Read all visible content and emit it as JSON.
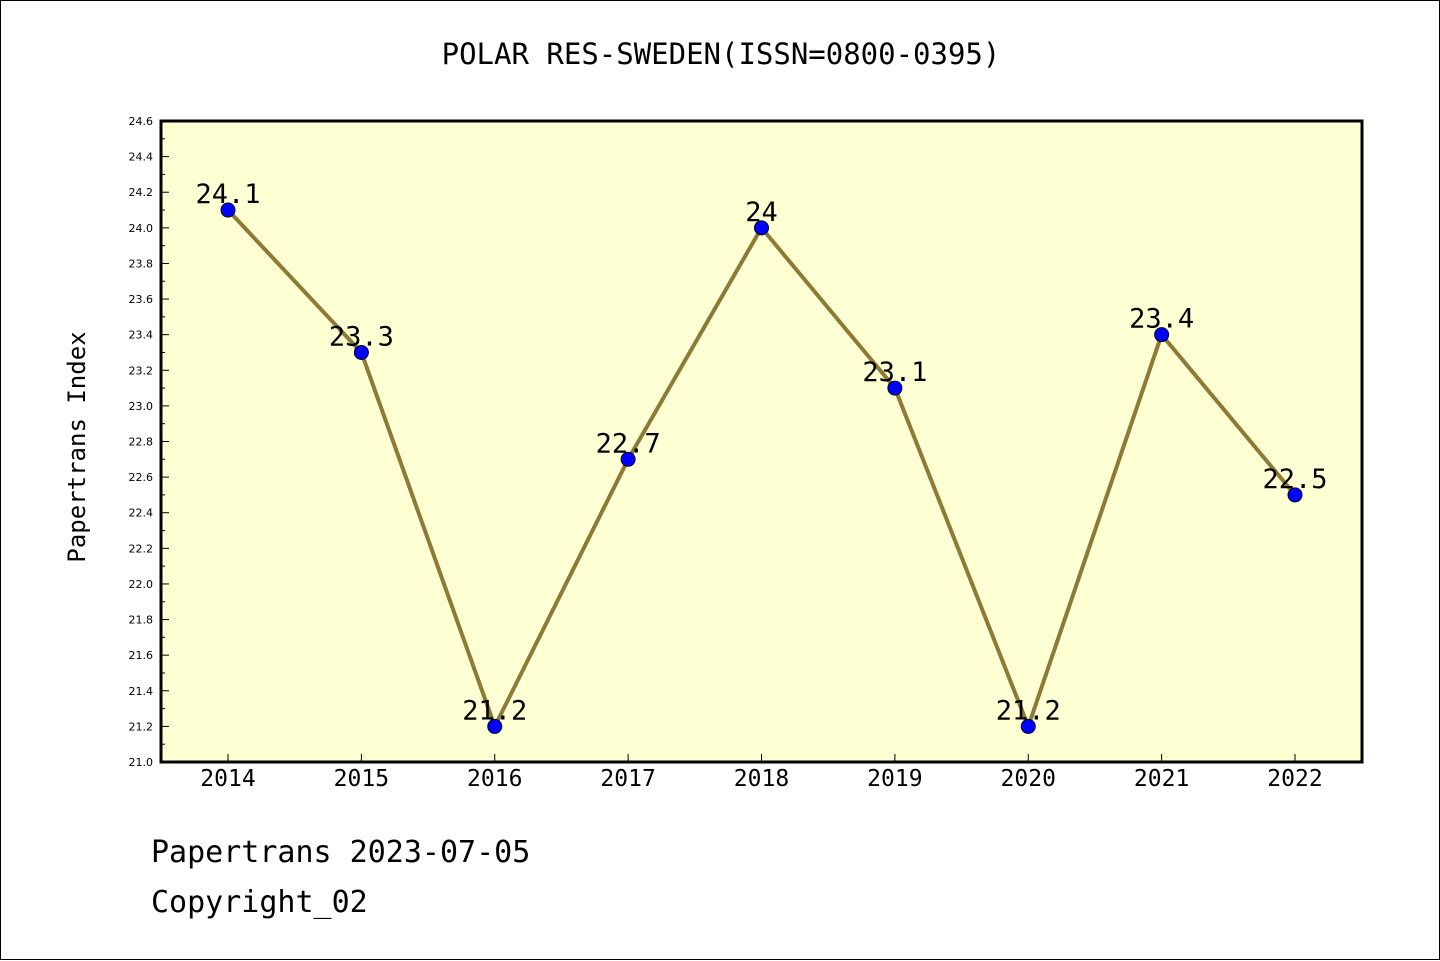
{
  "chart_data": {
    "type": "line",
    "title": "POLAR RES-SWEDEN(ISSN=0800-0395)",
    "xlabel": "",
    "ylabel": "Papertrans Index",
    "categories": [
      "2014",
      "2015",
      "2016",
      "2017",
      "2018",
      "2019",
      "2020",
      "2021",
      "2022"
    ],
    "series": [
      {
        "values": [
          24.1,
          23.3,
          21.2,
          22.7,
          24.0,
          23.1,
          21.2,
          23.4,
          22.5
        ],
        "data_labels": [
          "24.1",
          "23.3",
          "21.2",
          "22.7",
          "24",
          "23.1",
          "21.2",
          "23.4",
          "22.5"
        ]
      }
    ],
    "ylim": [
      21.0,
      24.6
    ],
    "yticks": [
      "21.0",
      "21.2",
      "21.4",
      "21.6",
      "21.8",
      "22.0",
      "22.2",
      "22.4",
      "22.6",
      "22.8",
      "23.0",
      "23.2",
      "23.4",
      "23.6",
      "23.8",
      "24.0",
      "24.2",
      "24.4",
      "24.6"
    ],
    "grid": false,
    "colors": {
      "plot_background": "#ffffd4",
      "line": "#8c7a36",
      "marker": "#0000ff"
    }
  },
  "footer": {
    "date_line": "Papertrans 2023-07-05",
    "copyright": "Copyright_02"
  }
}
